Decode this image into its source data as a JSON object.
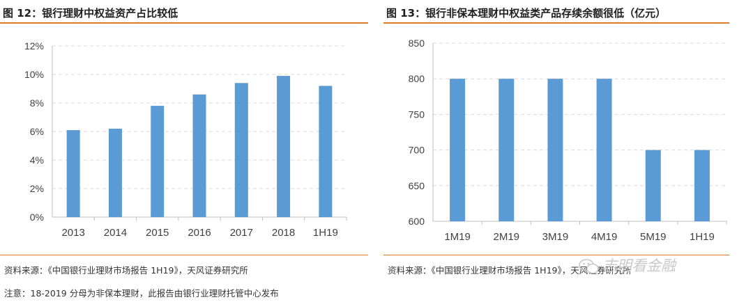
{
  "charts": [
    {
      "title": "图 12：银行理财中权益资产占比较低",
      "source": "资料来源：《中国银行业理财市场报告 1H19》，天风证券研究所",
      "note": "注意：18-2019 分母为非保本理财，此报告由银行业理财托管中心发布"
    },
    {
      "title": "图 13：银行非保本理财中权益类产品存续余额很低（亿元）",
      "source": "资料来源：《中国银行业理财市场报告 1H19》，天风证券研究所",
      "watermark": "志明看金融"
    }
  ],
  "colors": {
    "bar": "#5b9bd5",
    "rule": "#e07b27",
    "grid": "#d9d9d9",
    "axis": "#bfbfbf"
  },
  "icons": [
    "wechat-logo-icon"
  ],
  "chart_data": [
    {
      "type": "bar",
      "categories": [
        "2013",
        "2014",
        "2015",
        "2016",
        "2017",
        "2018",
        "1H19"
      ],
      "values": [
        6.1,
        6.2,
        7.8,
        8.6,
        9.4,
        9.9,
        9.2
      ],
      "yticks": [
        "0%",
        "2%",
        "4%",
        "6%",
        "8%",
        "10%",
        "12%"
      ],
      "ylim": [
        0,
        12
      ],
      "grid": true
    },
    {
      "type": "bar",
      "categories": [
        "1M19",
        "2M19",
        "3M19",
        "4M19",
        "5M19",
        "1H19"
      ],
      "values": [
        800,
        800,
        800,
        800,
        700,
        700
      ],
      "yticks": [
        "600",
        "650",
        "700",
        "750",
        "800",
        "850"
      ],
      "ylim": [
        600,
        850
      ],
      "grid": true
    }
  ]
}
